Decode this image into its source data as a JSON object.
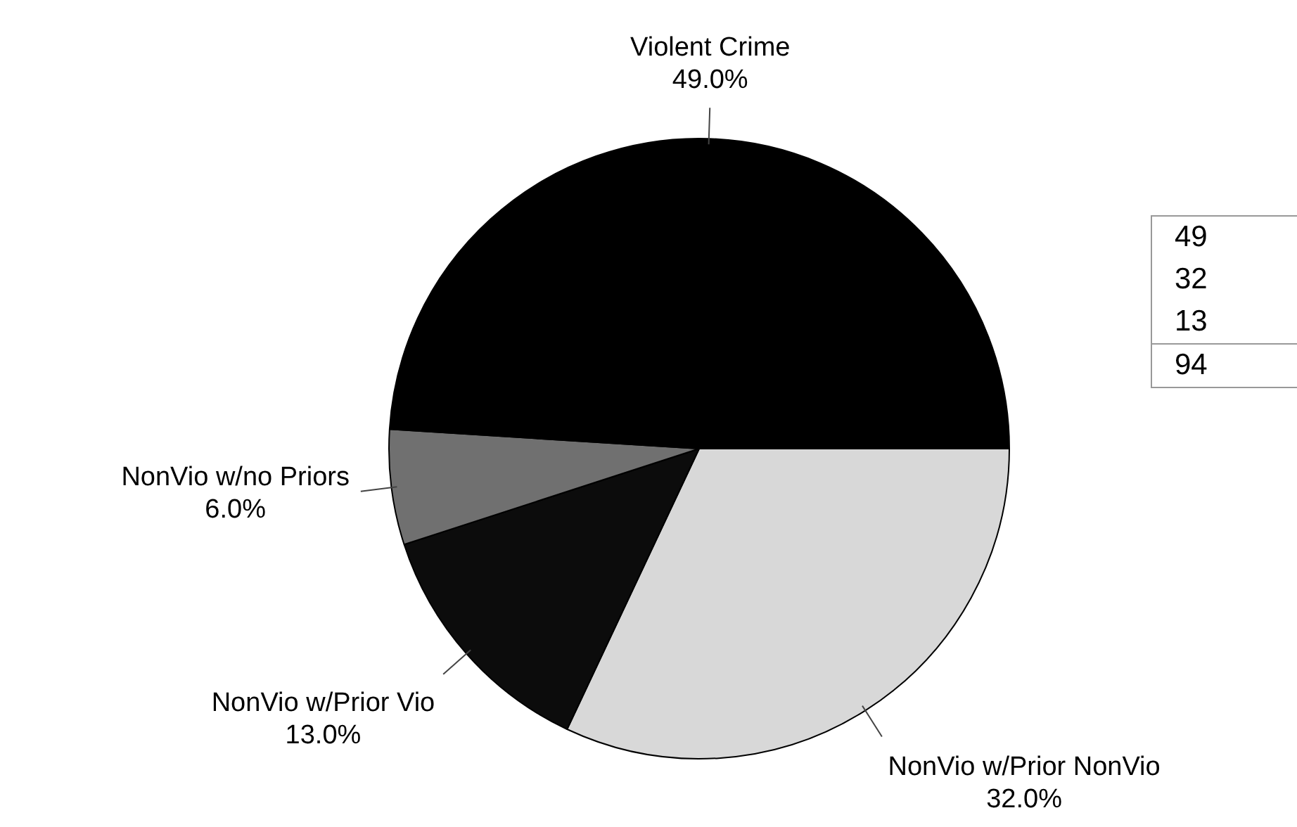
{
  "chart_data": {
    "type": "pie",
    "categories": [
      "NonVio w/Prior NonVio",
      "NonVio w/Prior Vio",
      "NonVio w/no Priors",
      "Violent Crime"
    ],
    "values": [
      32,
      13,
      6,
      49
    ],
    "value_labels": [
      "32.0%",
      "13.0%",
      "6.0%",
      "49.0%"
    ],
    "colors": [
      "#d8d8d8",
      "#0c0c0c",
      "#707070",
      "#000000"
    ],
    "legend": false,
    "annotations": [
      "49",
      "32",
      "13",
      "94"
    ]
  }
}
